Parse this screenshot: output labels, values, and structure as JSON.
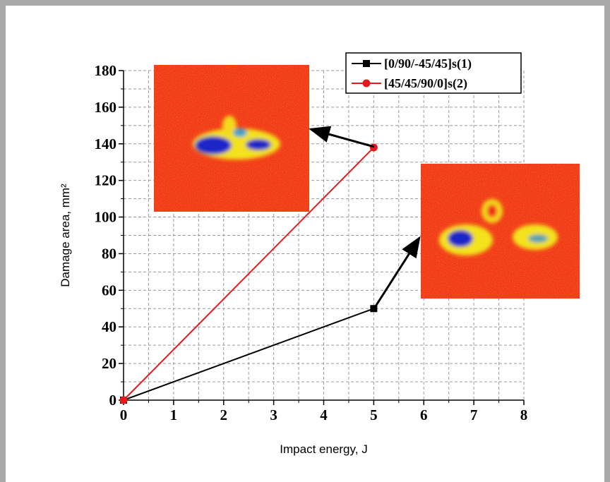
{
  "chart_data": {
    "type": "line",
    "xlabel": "Impact energy, J",
    "ylabel": "Damage area, mm²",
    "xlim": [
      0,
      8
    ],
    "xticks": [
      0,
      1,
      2,
      3,
      4,
      5,
      6,
      7,
      8
    ],
    "ylim": [
      0,
      180
    ],
    "yticks": [
      0,
      20,
      40,
      60,
      80,
      100,
      120,
      140,
      160,
      180
    ],
    "grid": true,
    "minor_grid": true,
    "legend": "upper right",
    "series": [
      {
        "name": "[0/90/-45/45]s(1)",
        "color": "#000000",
        "marker": "square",
        "x": [
          0,
          5
        ],
        "values": [
          0,
          50
        ]
      },
      {
        "name": "[45/45/90/0]s(2)",
        "color": "#e8191c",
        "marker": "circle",
        "x": [
          0,
          5
        ],
        "values": [
          0,
          138
        ]
      }
    ]
  }
}
